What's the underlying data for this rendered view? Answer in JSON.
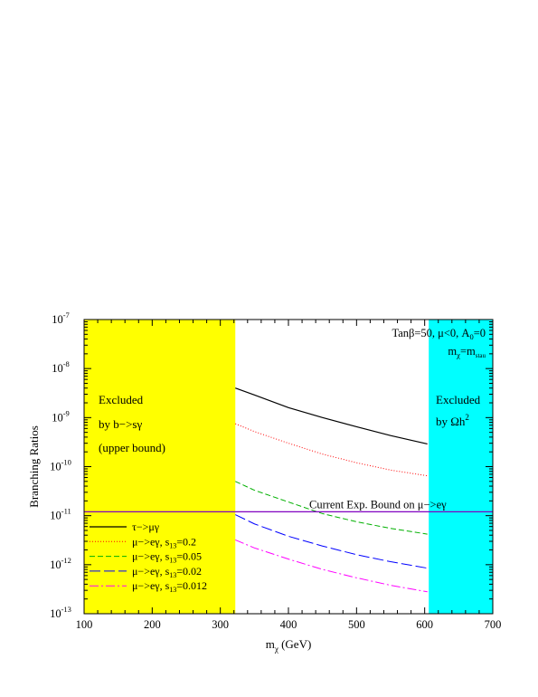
{
  "chart_data": {
    "type": "line",
    "title": "",
    "xlabel": "m",
    "xlabel_sub": "χ",
    "xlabel_unit": " (GeV)",
    "ylabel": "Branching Ratios",
    "xlim": [
      100,
      700
    ],
    "ylim_log10": [
      -13,
      -7
    ],
    "yscale": "log",
    "x_ticks": [
      "100",
      "200",
      "300",
      "400",
      "500",
      "600",
      "700"
    ],
    "y_ticks": [
      {
        "exp": -13,
        "base": "10",
        "power": "-13"
      },
      {
        "exp": -12,
        "base": "10",
        "power": "-12"
      },
      {
        "exp": -11,
        "base": "10",
        "power": "-11"
      },
      {
        "exp": -10,
        "base": "10",
        "power": "-10"
      },
      {
        "exp": -9,
        "base": "10",
        "power": "-9"
      },
      {
        "exp": -8,
        "base": "10",
        "power": "-8"
      },
      {
        "exp": -7,
        "base": "10",
        "power": "-7"
      }
    ],
    "regions": [
      {
        "x0": 100,
        "x1": 322,
        "color": "#ffff00",
        "lines": [
          "Excluded",
          "by b−>sγ",
          "(upper bound)"
        ]
      },
      {
        "x0": 606,
        "x1": 700,
        "color": "#00ffff",
        "lines": [
          "Excluded",
          "by Ωh"
        ],
        "sup": "2"
      }
    ],
    "bound": {
      "value": 1.2e-11,
      "color": "#8000c0",
      "label": "Current Exp. Bound on μ−>eγ"
    },
    "params": {
      "line1": "Tanβ=50, μ<0, A",
      "line1_sub": "0",
      "line1_end": "=0",
      "line2_a": "m",
      "line2_sub": "χ",
      "line2_eq": "=m",
      "line2_sub2": "stau"
    },
    "series": [
      {
        "label": "τ−>μγ",
        "sub": "",
        "end": "",
        "color": "#000000",
        "dash": "",
        "x": [
          322,
          350,
          400,
          450,
          500,
          550,
          604
        ],
        "y": [
          4e-09,
          2.9e-09,
          1.6e-09,
          1e-09,
          6.5e-10,
          4.3e-10,
          2.9e-10
        ]
      },
      {
        "label": "μ−>eγ, s",
        "sub": "13",
        "end": "=0.2",
        "color": "#ff0000",
        "dash": "1,2",
        "x": [
          322,
          350,
          400,
          450,
          500,
          550,
          604
        ],
        "y": [
          7.5e-10,
          5.2e-10,
          3e-10,
          1.8e-10,
          1.2e-10,
          8.5e-11,
          6.5e-11
        ]
      },
      {
        "label": "μ−>eγ, s",
        "sub": "13",
        "end": "=0.05",
        "color": "#00b000",
        "dash": "6,3",
        "x": [
          322,
          350,
          400,
          450,
          500,
          550,
          604
        ],
        "y": [
          5e-11,
          3.3e-11,
          1.9e-11,
          1.1e-11,
          7.5e-12,
          5.5e-12,
          4.2e-12
        ]
      },
      {
        "label": "μ−>eγ, s",
        "sub": "13",
        "end": "=0.02",
        "color": "#0000ff",
        "dash": "12,4",
        "x": [
          322,
          350,
          400,
          450,
          500,
          550,
          604
        ],
        "y": [
          1.05e-11,
          6.8e-12,
          3.8e-12,
          2.4e-12,
          1.6e-12,
          1.15e-12,
          8.5e-13
        ]
      },
      {
        "label": "μ−>eγ, s",
        "sub": "13",
        "end": "=0.012",
        "color": "#ff00ff",
        "dash": "10,3,2,3",
        "x": [
          322,
          350,
          400,
          450,
          500,
          550,
          604
        ],
        "y": [
          3.2e-12,
          2.2e-12,
          1.3e-12,
          8e-13,
          5.4e-13,
          3.8e-13,
          2.8e-13
        ]
      }
    ]
  }
}
